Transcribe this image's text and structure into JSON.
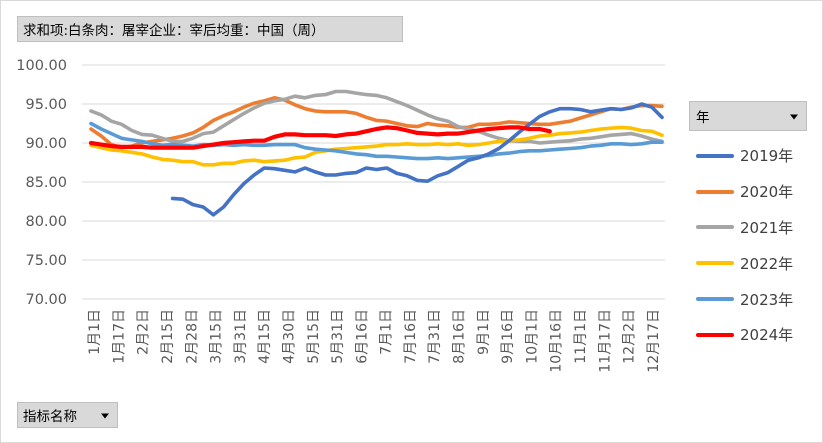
{
  "pivot": {
    "title_field": "求和项:白条肉：屠宰企业：宰后均重：中国（周）",
    "legend_field": "年",
    "filter_field": "指标名称"
  },
  "chart_data": {
    "type": "line",
    "title": "",
    "xlabel": "",
    "ylabel": "",
    "ylim": [
      70,
      100
    ],
    "yticks": [
      "100.00",
      "95.00",
      "90.00",
      "85.00",
      "80.00",
      "75.00",
      "70.00"
    ],
    "grid": true,
    "legend_position": "right",
    "x_ticks": [
      "1月1日",
      "1月17日",
      "2月2日",
      "2月15日",
      "2月28日",
      "3月15日",
      "3月31日",
      "4月15日",
      "4月30日",
      "5月15日",
      "5月31日",
      "6月16日",
      "7月1日",
      "7月16日",
      "7月31日",
      "8月16日",
      "9月1日",
      "9月16日",
      "10月1日",
      "10月16日",
      "11月1日",
      "11月17日",
      "12月2日",
      "12月17日"
    ],
    "series": [
      {
        "name": "2019年",
        "color": "#4472c4",
        "values": [
          null,
          null,
          null,
          null,
          null,
          null,
          null,
          null,
          82.9,
          82.8,
          82.1,
          81.8,
          80.8,
          81.8,
          83.4,
          84.8,
          85.9,
          86.8,
          86.7,
          86.5,
          86.3,
          86.8,
          86.3,
          85.9,
          85.9,
          86.1,
          86.2,
          86.8,
          86.6,
          86.8,
          86.1,
          85.8,
          85.2,
          85.1,
          85.8,
          86.2,
          87.0,
          87.8,
          88.1,
          88.6,
          89.3,
          90.3,
          91.4,
          92.4,
          93.4,
          94.0,
          94.4,
          94.4,
          94.3,
          94.0,
          94.2,
          94.4,
          94.3,
          94.5,
          95.0,
          94.6,
          93.3
        ]
      },
      {
        "name": "2020年",
        "color": "#ed7d31",
        "values": [
          91.8,
          90.9,
          89.8,
          89.4,
          89.6,
          90.0,
          90.2,
          90.4,
          90.6,
          90.9,
          91.3,
          92.0,
          92.9,
          93.5,
          94.0,
          94.6,
          95.1,
          95.4,
          95.8,
          95.5,
          94.9,
          94.4,
          94.1,
          94.0,
          94.0,
          94.0,
          93.8,
          93.3,
          92.9,
          92.8,
          92.5,
          92.2,
          92.1,
          92.5,
          92.3,
          92.2,
          92.0,
          92.0,
          92.4,
          92.4,
          92.5,
          92.7,
          92.6,
          92.5,
          92.4,
          92.4,
          92.6,
          92.8,
          93.2,
          93.6,
          94.0,
          94.4,
          94.3,
          94.6,
          94.8,
          94.8,
          94.7
        ]
      },
      {
        "name": "2021年",
        "color": "#a5a5a5",
        "values": [
          94.1,
          93.6,
          92.8,
          92.4,
          91.6,
          91.1,
          91.0,
          90.6,
          90.2,
          90.2,
          90.6,
          91.2,
          91.4,
          92.2,
          93.0,
          93.8,
          94.5,
          95.1,
          95.4,
          95.6,
          96.0,
          95.8,
          96.1,
          96.2,
          96.6,
          96.6,
          96.4,
          96.2,
          96.1,
          95.8,
          95.3,
          94.8,
          94.2,
          93.6,
          93.1,
          92.8,
          92.1,
          91.8,
          91.5,
          91.0,
          90.6,
          90.3,
          90.2,
          90.2,
          90.0,
          90.1,
          90.2,
          90.3,
          90.5,
          90.6,
          90.8,
          91.0,
          91.1,
          91.2,
          90.9,
          90.5,
          90.2
        ]
      },
      {
        "name": "2022年",
        "color": "#ffc000",
        "values": [
          89.7,
          89.4,
          89.1,
          89.0,
          88.8,
          88.6,
          88.2,
          87.9,
          87.8,
          87.6,
          87.6,
          87.2,
          87.2,
          87.4,
          87.4,
          87.7,
          87.8,
          87.6,
          87.7,
          87.8,
          88.1,
          88.2,
          88.8,
          89.0,
          89.2,
          89.3,
          89.4,
          89.5,
          89.6,
          89.8,
          89.8,
          89.9,
          89.8,
          89.8,
          89.9,
          89.8,
          89.9,
          89.7,
          89.8,
          90.0,
          90.2,
          90.3,
          90.4,
          90.6,
          90.9,
          91.0,
          91.2,
          91.3,
          91.4,
          91.6,
          91.8,
          91.9,
          92.0,
          91.9,
          91.6,
          91.5,
          91.0
        ]
      },
      {
        "name": "2023年",
        "color": "#5b9bd5",
        "values": [
          92.5,
          91.8,
          91.2,
          90.6,
          90.4,
          90.2,
          89.9,
          89.7,
          89.8,
          89.7,
          89.6,
          89.8,
          89.7,
          89.8,
          89.7,
          89.8,
          89.7,
          89.7,
          89.8,
          89.8,
          89.8,
          89.4,
          89.2,
          89.1,
          89.0,
          88.8,
          88.6,
          88.5,
          88.3,
          88.3,
          88.2,
          88.1,
          88.0,
          88.0,
          88.1,
          88.0,
          88.1,
          88.2,
          88.3,
          88.4,
          88.6,
          88.7,
          88.9,
          89.0,
          89.0,
          89.1,
          89.2,
          89.3,
          89.4,
          89.6,
          89.7,
          89.9,
          89.9,
          89.8,
          89.9,
          90.1,
          90.1
        ]
      },
      {
        "name": "2024年",
        "color": "#ff0000",
        "values": [
          90.0,
          89.8,
          89.6,
          89.5,
          89.5,
          89.5,
          89.4,
          89.4,
          89.4,
          89.4,
          89.4,
          89.6,
          89.8,
          90.0,
          90.1,
          90.2,
          90.3,
          90.3,
          90.8,
          91.1,
          91.1,
          91.0,
          91.0,
          91.0,
          90.9,
          91.1,
          91.2,
          91.5,
          91.8,
          92.0,
          91.9,
          91.6,
          91.3,
          91.2,
          91.1,
          91.2,
          91.2,
          91.4,
          91.6,
          91.8,
          91.9,
          92.0,
          92.0,
          91.8,
          91.8,
          91.5,
          null,
          null,
          null,
          null,
          null,
          null,
          null,
          null,
          null,
          null,
          null
        ]
      }
    ]
  }
}
